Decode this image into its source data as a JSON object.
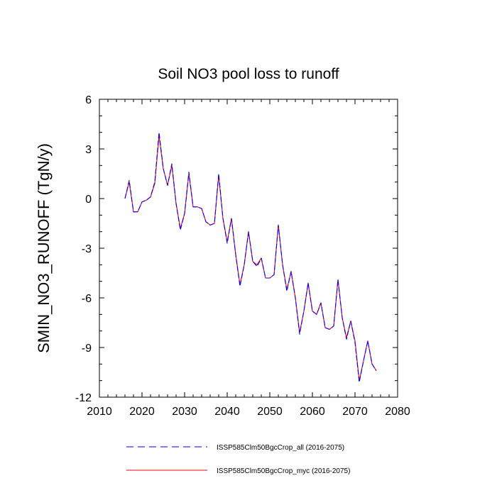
{
  "chart_data": {
    "type": "line",
    "title": "Soil NO3 pool loss to runoff",
    "xlabel": "",
    "ylabel": "SMIN_NO3_RUNOFF  (TgN/y)",
    "xlim": [
      2010,
      2080
    ],
    "ylim": [
      -12,
      6
    ],
    "xticks": [
      2010,
      2020,
      2030,
      2040,
      2050,
      2060,
      2070,
      2080
    ],
    "xtick_labels": [
      "2010",
      "2020",
      "2030",
      "2040",
      "2050",
      "2060",
      "2070",
      "2080"
    ],
    "yticks": [
      6,
      3,
      0,
      -3,
      -6,
      -9,
      -12
    ],
    "ytick_labels": [
      "6",
      "3",
      "0",
      "-3",
      "-6",
      "-9",
      "-12"
    ],
    "grid": false,
    "legend_position": "bottom",
    "x": [
      2016,
      2017,
      2018,
      2019,
      2020,
      2021,
      2022,
      2023,
      2024,
      2025,
      2026,
      2027,
      2028,
      2029,
      2030,
      2031,
      2032,
      2033,
      2034,
      2035,
      2036,
      2037,
      2038,
      2039,
      2040,
      2041,
      2042,
      2043,
      2044,
      2045,
      2046,
      2047,
      2048,
      2049,
      2050,
      2051,
      2052,
      2053,
      2054,
      2055,
      2056,
      2057,
      2058,
      2059,
      2060,
      2061,
      2062,
      2063,
      2064,
      2065,
      2066,
      2067,
      2068,
      2069,
      2070,
      2071,
      2072,
      2073,
      2074,
      2075
    ],
    "series": [
      {
        "name": "ISSP585Clm50BgcCrop_all (2016-2075)",
        "color": "#0000ff",
        "dashed": true,
        "values": [
          0.0,
          1.1,
          -0.8,
          -0.8,
          -0.2,
          -0.1,
          0.1,
          1.0,
          4.0,
          1.8,
          0.8,
          2.1,
          -0.3,
          -1.9,
          -0.9,
          1.6,
          -0.5,
          -0.5,
          -0.6,
          -1.4,
          -1.6,
          -1.5,
          1.5,
          -1.2,
          -2.7,
          -1.2,
          -3.4,
          -5.3,
          -4.0,
          -2.0,
          -3.8,
          -4.1,
          -3.6,
          -4.8,
          -4.8,
          -4.6,
          -1.6,
          -4.0,
          -5.6,
          -4.4,
          -6.0,
          -8.2,
          -6.8,
          -5.1,
          -6.8,
          -7.0,
          -6.3,
          -7.8,
          -7.9,
          -7.7,
          -4.9,
          -7.2,
          -8.5,
          -7.4,
          -8.7,
          -11.1,
          -9.8,
          -8.6,
          -10.0,
          -10.4
        ]
      },
      {
        "name": "ISSP585Clm50BgcCrop_myc (2016-2075)",
        "color": "#ff0000",
        "dashed": false,
        "values": [
          0.0,
          1.0,
          -0.8,
          -0.8,
          -0.2,
          -0.1,
          0.1,
          0.9,
          3.8,
          1.8,
          0.8,
          2.0,
          -0.3,
          -1.8,
          -0.9,
          1.5,
          -0.5,
          -0.5,
          -0.6,
          -1.4,
          -1.6,
          -1.5,
          1.4,
          -1.2,
          -2.6,
          -1.2,
          -3.4,
          -5.2,
          -4.0,
          -2.0,
          -3.8,
          -4.0,
          -3.6,
          -4.8,
          -4.8,
          -4.6,
          -1.6,
          -4.0,
          -5.5,
          -4.4,
          -6.0,
          -8.1,
          -6.8,
          -5.1,
          -6.8,
          -7.0,
          -6.3,
          -7.8,
          -7.9,
          -7.7,
          -4.9,
          -7.2,
          -8.4,
          -7.4,
          -8.6,
          -11.0,
          -9.8,
          -8.6,
          -10.0,
          -10.4
        ]
      }
    ]
  }
}
